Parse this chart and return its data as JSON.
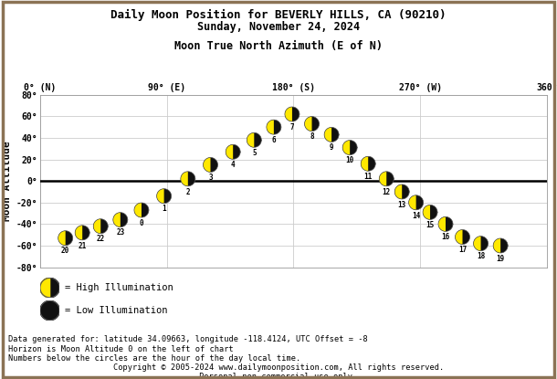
{
  "title1": "Daily Moon Position for BEVERLY HILLS, CA (90210)",
  "title2": "Sunday, November 24, 2024",
  "xlabel": "Moon True North Azimuth (E of N)",
  "ylabel": "Moon Altitude",
  "xtick_labels": [
    "0° (N)",
    "90° (E)",
    "180° (S)",
    "270° (W)",
    "360°"
  ],
  "xtick_values": [
    0,
    90,
    180,
    270,
    360
  ],
  "ytick_labels": [
    "-80°",
    "-60°",
    "-40°",
    "-20°",
    "0°",
    "20°",
    "40°",
    "60°",
    "80°"
  ],
  "ytick_values": [
    -80,
    -60,
    -40,
    -20,
    0,
    20,
    40,
    60,
    80
  ],
  "ylim": [
    -80,
    80
  ],
  "xlim": [
    0,
    360
  ],
  "hours": [
    20,
    21,
    22,
    23,
    0,
    1,
    2,
    3,
    4,
    5,
    6,
    7,
    8,
    9,
    10,
    11,
    12,
    13,
    14,
    15,
    16,
    17,
    18,
    19
  ],
  "azimuths": [
    18,
    30,
    43,
    57,
    72,
    88,
    105,
    121,
    137,
    152,
    166,
    179,
    193,
    207,
    220,
    233,
    246,
    257,
    267,
    277,
    288,
    300,
    313,
    327
  ],
  "altitudes": [
    -53,
    -48,
    -42,
    -36,
    -27,
    -14,
    2,
    15,
    27,
    38,
    50,
    62,
    53,
    43,
    31,
    16,
    2,
    -10,
    -20,
    -29,
    -40,
    -52,
    -58,
    -60
  ],
  "bg_color": "#ffffff",
  "grid_color": "#cccccc",
  "horizon_color": "#000000",
  "border_color": "#8B7355",
  "moon_yellow": "#FFE800",
  "moon_dark": "#111111",
  "legend_high_text": "= High Illumination",
  "legend_low_text": "= Low Illumination",
  "footer1": "Data generated for: latitude 34.09663, longitude -118.4124, UTC Offset = -8",
  "footer2": "Horizon is Moon Altitude 0 on the left of chart",
  "footer3": "Numbers below the circles are the hour of the day local time.",
  "footer4": "Copyright © 2005-2024 www.dailymoonposition.com, All rights reserved.",
  "footer5": "Personal non commercial use only."
}
